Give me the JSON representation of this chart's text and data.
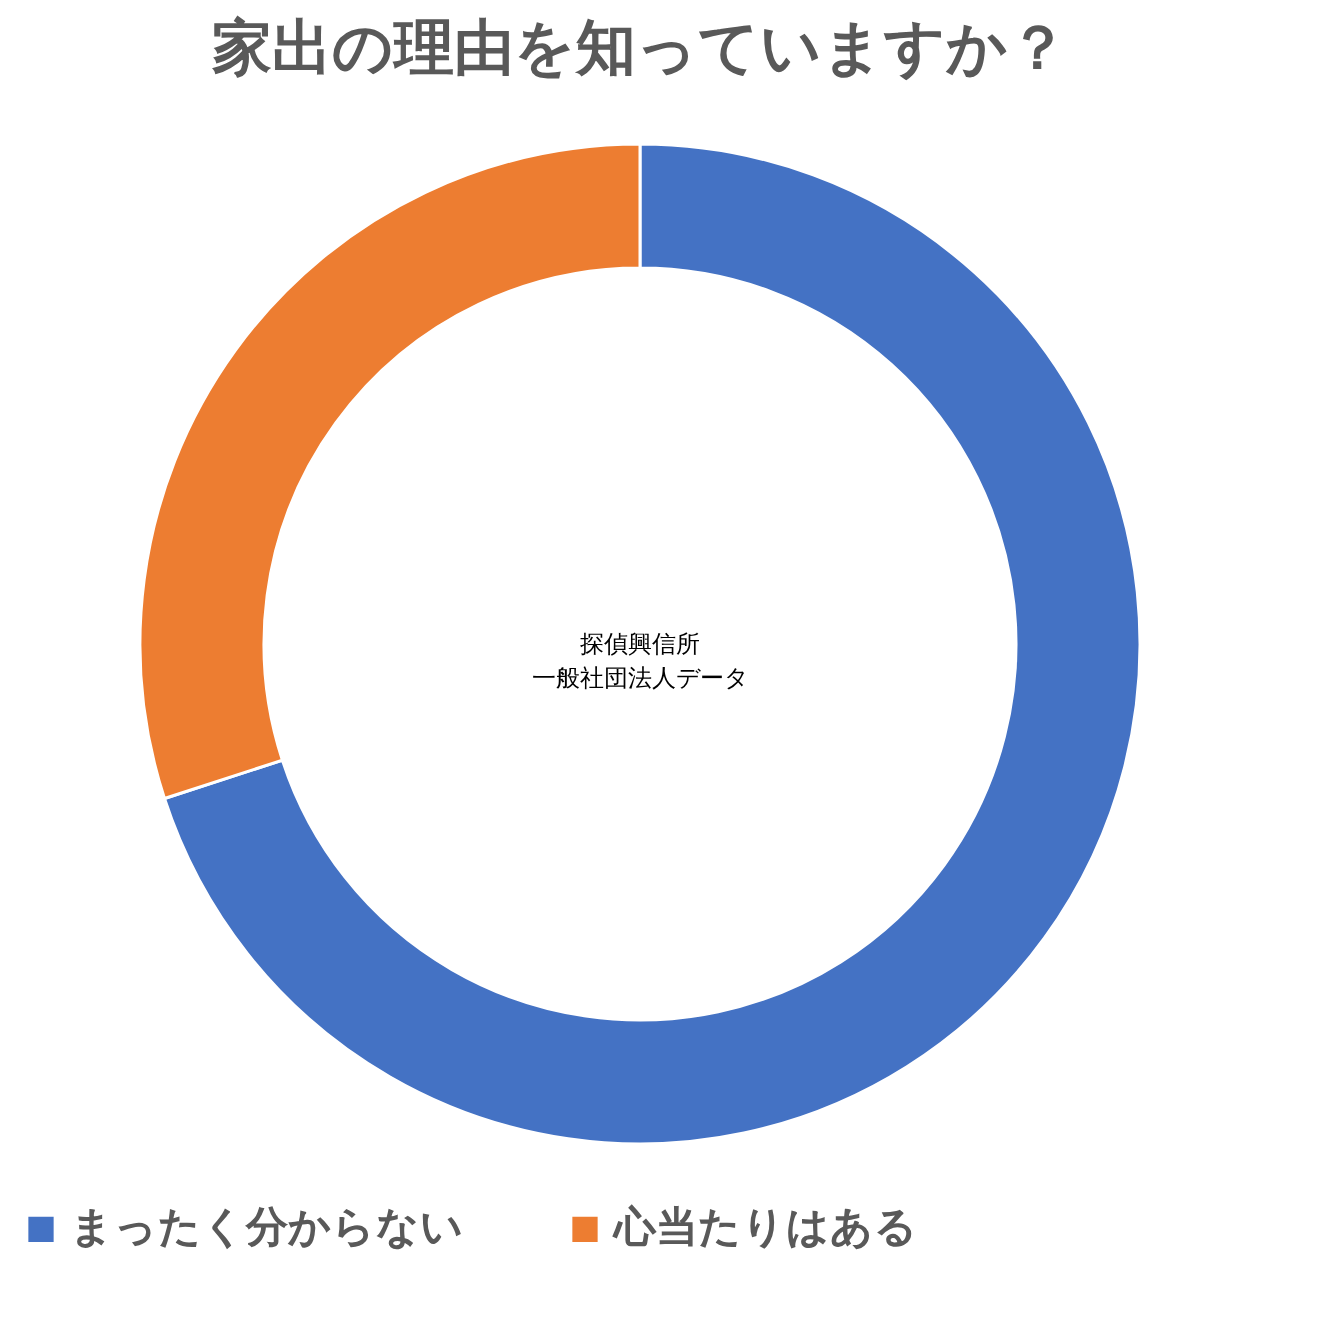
{
  "chart_data": {
    "type": "donut",
    "title": "家出の理由を知っていますか？",
    "categories": [
      "まったく分からない",
      "心当たりはある"
    ],
    "values": [
      70,
      30
    ],
    "colors": [
      "#4472c4",
      "#ed7d31"
    ],
    "legend": "bottom",
    "annotations": [
      "探偵興信所",
      "一般社団法人データ"
    ]
  }
}
